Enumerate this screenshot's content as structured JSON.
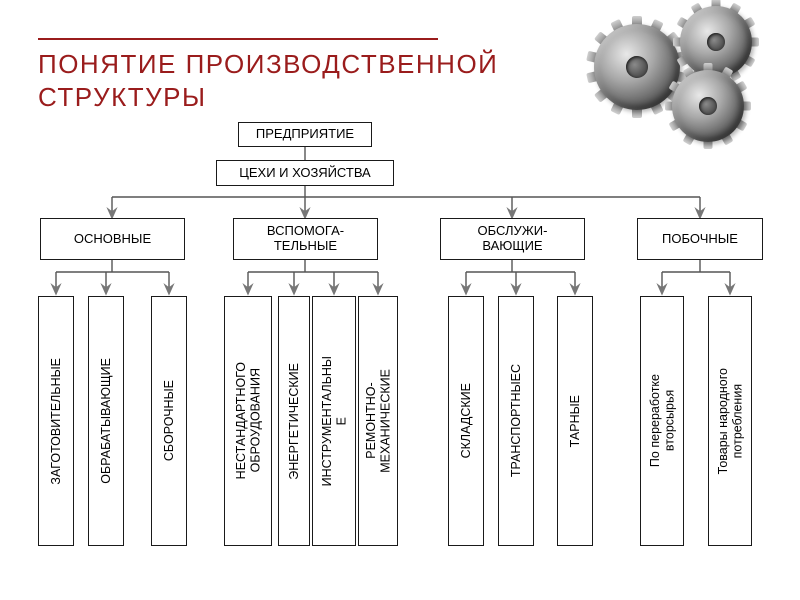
{
  "title": {
    "line1": "ПОНЯТИЕ ПРОИЗВОДСТВЕННОЙ",
    "line2": "СТРУКТУРЫ",
    "color": "#9a1c1c",
    "fontsize": 26
  },
  "style": {
    "bg": "#ffffff",
    "box_border": "#1a1a1a",
    "connector_color": "#555555",
    "arrow_fill": "#777777",
    "accent_bar_color": "#9a1c1c"
  },
  "diagram": {
    "type": "tree",
    "root": {
      "label": "ПРЕДПРИЯТИЕ"
    },
    "level2": {
      "label": "ЦЕХИ И ХОЗЯЙСТВА"
    },
    "groups": [
      {
        "label": "ОСНОВНЫЕ",
        "children": [
          "ЗАГОТОВИТЕЛЬНЫЕ",
          "ОБРАБАТЫВАЮЩИЕ",
          "СБОРОЧНЫЕ"
        ]
      },
      {
        "label": "ВСПОМОГА-\nТЕЛЬНЫЕ",
        "children": [
          "НЕСТАНДАРТНОГО\nОБРОУДОВАНИЯ",
          "ЭНЕРГЕТИЧЕСКИЕ",
          "ИНСТРУМЕНТАЛЬНЫ\nЕ",
          "РЕМОНТНО-\nМЕХАНИЧЕСКИЕ"
        ]
      },
      {
        "label": "ОБСЛУЖИ-\nВАЮЩИЕ",
        "children": [
          "СКЛАДСКИЕ",
          "ТРАНСПОРТНЫЕС",
          "ТАРНЫЕ"
        ]
      },
      {
        "label": "ПОБОЧНЫЕ",
        "children": [
          "По переработке\nвторсырья",
          "Товары народного\nпотребления"
        ]
      }
    ]
  },
  "gears": {
    "count": 3,
    "color": "metallic-gray"
  }
}
